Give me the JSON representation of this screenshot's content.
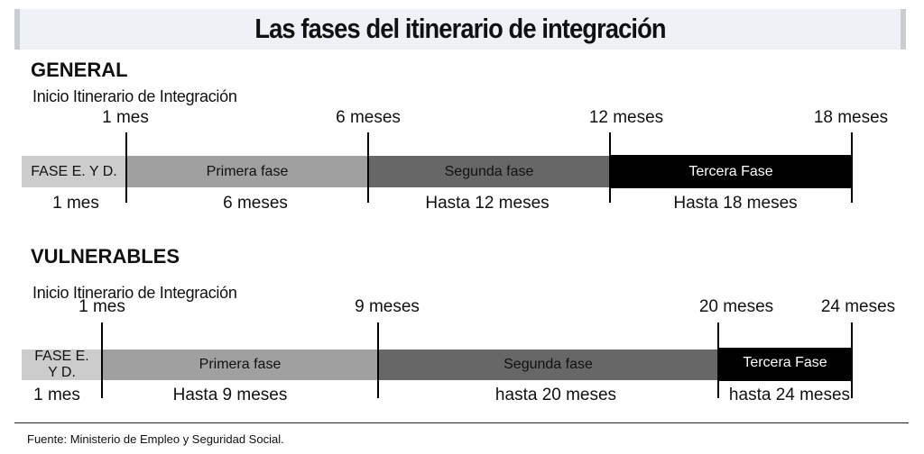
{
  "title": "Las fases del itinerario de integración",
  "colors": {
    "fase_ey_d": "#cccccc",
    "primera": "#a0a0a0",
    "segunda": "#676767",
    "tercera": "#000000",
    "title_bg": "#eef2f7"
  },
  "general": {
    "heading": "GENERAL",
    "subtitle": "Inicio Itinerario de Integración",
    "ticks": [
      "1 mes",
      "6 meses",
      "12 meses",
      "18 meses"
    ],
    "phases": [
      "FASE E. Y D.",
      "Primera fase",
      "Segunda fase",
      "Tercera Fase"
    ],
    "durations": [
      "1 mes",
      "6 meses",
      "Hasta 12 meses",
      "Hasta 18 meses"
    ]
  },
  "vulnerables": {
    "heading": "VULNERABLES",
    "subtitle": "Inicio Itinerario de Integración",
    "ticks": [
      "1 mes",
      "9 meses",
      "20 meses",
      "24 meses"
    ],
    "phases": [
      "FASE E. Y D.",
      "Primera fase",
      "Segunda fase",
      "Tercera Fase"
    ],
    "durations": [
      "1 mes",
      "Hasta 9 meses",
      "hasta 20 meses",
      "hasta 24 meses"
    ]
  },
  "footer": "Fuente: Ministerio de Empleo y Seguridad Social."
}
